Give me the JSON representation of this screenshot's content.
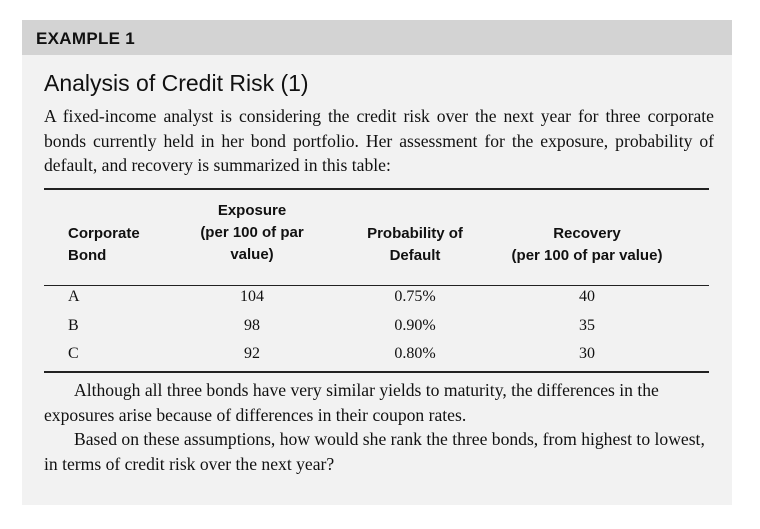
{
  "example_label": "EXAMPLE 1",
  "title": "Analysis of Credit Risk (1)",
  "intro": "A fixed-income analyst is considering the credit risk over the next year for three corporate bonds currently held in her bond portfolio. Her assessment for the exposure, probability of default, and recovery is summarized in this table:",
  "table": {
    "headers": {
      "bond": [
        "Corporate",
        "Bond"
      ],
      "exposure": [
        "Exposure",
        "(per 100 of par",
        "value)"
      ],
      "probability": [
        "Probability of",
        "Default"
      ],
      "recovery": [
        "Recovery",
        "(per 100 of par value)"
      ]
    },
    "rows": [
      {
        "bond": "A",
        "exposure": "104",
        "probability": "0.75%",
        "recovery": "40"
      },
      {
        "bond": "B",
        "exposure": "98",
        "probability": "0.90%",
        "recovery": "35"
      },
      {
        "bond": "C",
        "exposure": "92",
        "probability": "0.80%",
        "recovery": "30"
      }
    ]
  },
  "paragraph2": "Although all three bonds have very similar yields to maturity, the differences in the exposures arise because of differences in their coupon rates.",
  "paragraph3": "Based on these assumptions, how would she rank the three bonds, from highest to lowest, in terms of credit risk over the next year?"
}
